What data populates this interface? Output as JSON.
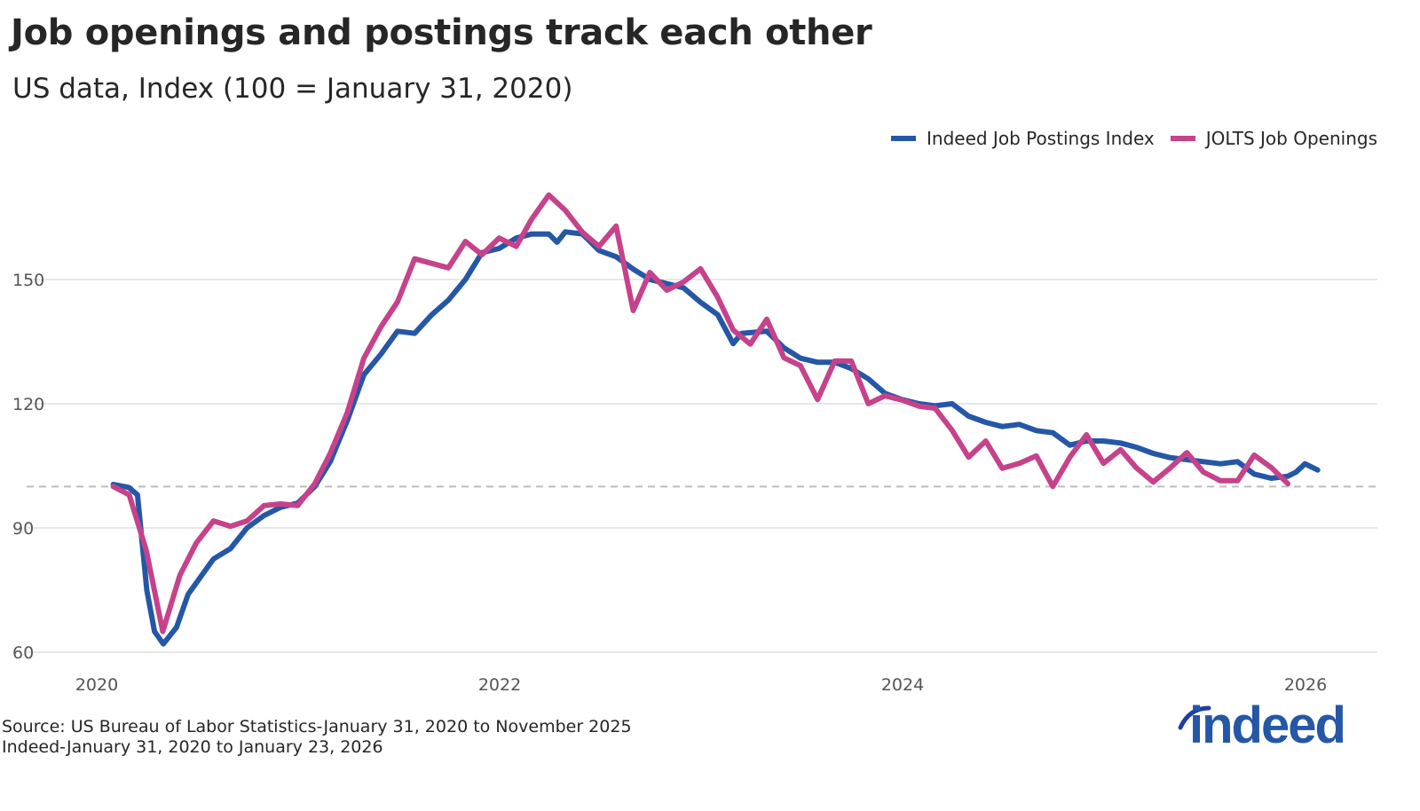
{
  "chart_data": {
    "type": "line",
    "title": "Job openings and postings track each other",
    "subtitle": "US data, Index (100 = January 31, 2020)",
    "xlabel": "",
    "ylabel": "",
    "x_ticks": [
      "2020",
      "2022",
      "2024",
      "2026"
    ],
    "y_ticks": [
      "60",
      "90",
      "120",
      "150"
    ],
    "ylim": [
      60,
      172
    ],
    "xlim": [
      "2019-12-01",
      "2026-07-01"
    ],
    "reference_line": 100,
    "grid": "horizontal",
    "legend_position": "top-right",
    "series": [
      {
        "name": "Indeed Job Postings Index",
        "color": "#2557a7",
        "points": [
          [
            "2020-01-31",
            100.5
          ],
          [
            "2020-02-28",
            99.8
          ],
          [
            "2020-03-15",
            98
          ],
          [
            "2020-04-01",
            75
          ],
          [
            "2020-04-15",
            65
          ],
          [
            "2020-05-01",
            62
          ],
          [
            "2020-05-25",
            66
          ],
          [
            "2020-06-15",
            74
          ],
          [
            "2020-07-31",
            82.5
          ],
          [
            "2020-08-31",
            85
          ],
          [
            "2020-09-30",
            90
          ],
          [
            "2020-10-31",
            93
          ],
          [
            "2020-11-30",
            95
          ],
          [
            "2020-12-31",
            96
          ],
          [
            "2021-01-31",
            100
          ],
          [
            "2021-02-28",
            106
          ],
          [
            "2021-03-31",
            116
          ],
          [
            "2021-04-30",
            127
          ],
          [
            "2021-05-31",
            132
          ],
          [
            "2021-06-30",
            137.5
          ],
          [
            "2021-07-31",
            137
          ],
          [
            "2021-08-31",
            141.5
          ],
          [
            "2021-09-30",
            145
          ],
          [
            "2021-10-31",
            150
          ],
          [
            "2021-11-30",
            156.5
          ],
          [
            "2021-12-31",
            157.5
          ],
          [
            "2022-01-31",
            160
          ],
          [
            "2022-02-28",
            161
          ],
          [
            "2022-03-31",
            161
          ],
          [
            "2022-04-15",
            159
          ],
          [
            "2022-04-30",
            161.5
          ],
          [
            "2022-05-31",
            161
          ],
          [
            "2022-06-30",
            157
          ],
          [
            "2022-07-31",
            155.5
          ],
          [
            "2022-08-31",
            152.5
          ],
          [
            "2022-09-30",
            150
          ],
          [
            "2022-10-31",
            149
          ],
          [
            "2022-11-30",
            148
          ],
          [
            "2022-12-31",
            144.5
          ],
          [
            "2023-01-31",
            141.5
          ],
          [
            "2023-02-28",
            134.5
          ],
          [
            "2023-03-15",
            137
          ],
          [
            "2023-04-30",
            137.5
          ],
          [
            "2023-05-31",
            133.5
          ],
          [
            "2023-06-30",
            131
          ],
          [
            "2023-07-31",
            130
          ],
          [
            "2023-08-31",
            130
          ],
          [
            "2023-09-30",
            128.5
          ],
          [
            "2023-10-31",
            126
          ],
          [
            "2023-11-30",
            122.5
          ],
          [
            "2023-12-31",
            121
          ],
          [
            "2024-01-31",
            120
          ],
          [
            "2024-02-29",
            119.5
          ],
          [
            "2024-03-31",
            120
          ],
          [
            "2024-04-30",
            117
          ],
          [
            "2024-05-31",
            115.5
          ],
          [
            "2024-06-30",
            114.5
          ],
          [
            "2024-07-31",
            115
          ],
          [
            "2024-08-31",
            113.5
          ],
          [
            "2024-09-30",
            113
          ],
          [
            "2024-10-31",
            110
          ],
          [
            "2024-11-30",
            111
          ],
          [
            "2024-12-31",
            111
          ],
          [
            "2025-01-31",
            110.5
          ],
          [
            "2025-02-28",
            109.5
          ],
          [
            "2025-03-31",
            108
          ],
          [
            "2025-04-30",
            107
          ],
          [
            "2025-05-31",
            106.5
          ],
          [
            "2025-06-30",
            106
          ],
          [
            "2025-07-31",
            105.5
          ],
          [
            "2025-08-31",
            106
          ],
          [
            "2025-09-30",
            103
          ],
          [
            "2025-10-31",
            102
          ],
          [
            "2025-11-30",
            102.5
          ],
          [
            "2025-12-15",
            103.5
          ],
          [
            "2025-12-31",
            105.5
          ],
          [
            "2026-01-23",
            104
          ]
        ]
      },
      {
        "name": "JOLTS Job Openings",
        "color": "#c6428a",
        "points": [
          [
            "2020-01-31",
            100
          ],
          [
            "2020-02-29",
            98
          ],
          [
            "2020-03-31",
            84.6
          ],
          [
            "2020-04-30",
            65
          ],
          [
            "2020-05-31",
            78.6
          ],
          [
            "2020-06-30",
            86.4
          ],
          [
            "2020-07-31",
            91.7
          ],
          [
            "2020-08-31",
            90.4
          ],
          [
            "2020-09-30",
            91.7
          ],
          [
            "2020-10-31",
            95.4
          ],
          [
            "2020-11-30",
            95.8
          ],
          [
            "2020-12-31",
            95.4
          ],
          [
            "2021-01-31",
            100.7
          ],
          [
            "2021-02-28",
            108
          ],
          [
            "2021-03-31",
            117.9
          ],
          [
            "2021-04-30",
            131
          ],
          [
            "2021-05-31",
            138.6
          ],
          [
            "2021-06-30",
            144.6
          ],
          [
            "2021-07-31",
            155
          ],
          [
            "2021-08-31",
            153.9
          ],
          [
            "2021-09-30",
            152.8
          ],
          [
            "2021-10-31",
            159.2
          ],
          [
            "2021-11-30",
            156
          ],
          [
            "2021-12-31",
            160
          ],
          [
            "2022-01-31",
            158
          ],
          [
            "2022-02-28",
            164.6
          ],
          [
            "2022-03-31",
            170.4
          ],
          [
            "2022-04-30",
            166.7
          ],
          [
            "2022-05-31",
            161.4
          ],
          [
            "2022-06-30",
            158
          ],
          [
            "2022-07-31",
            162.9
          ],
          [
            "2022-08-31",
            142.5
          ],
          [
            "2022-09-30",
            151.7
          ],
          [
            "2022-10-31",
            147.4
          ],
          [
            "2022-11-30",
            149.4
          ],
          [
            "2022-12-31",
            152.6
          ],
          [
            "2023-01-31",
            145.7
          ],
          [
            "2023-02-28",
            137.8
          ],
          [
            "2023-03-31",
            134.4
          ],
          [
            "2023-04-30",
            140.4
          ],
          [
            "2023-05-31",
            131.1
          ],
          [
            "2023-06-30",
            129.2
          ],
          [
            "2023-07-31",
            121
          ],
          [
            "2023-08-31",
            130.3
          ],
          [
            "2023-09-30",
            130.3
          ],
          [
            "2023-10-31",
            120
          ],
          [
            "2023-11-30",
            121.9
          ],
          [
            "2023-12-31",
            120.9
          ],
          [
            "2024-01-31",
            119.4
          ],
          [
            "2024-02-29",
            118.9
          ],
          [
            "2024-03-31",
            113.6
          ],
          [
            "2024-04-30",
            107.1
          ],
          [
            "2024-05-31",
            111
          ],
          [
            "2024-06-30",
            104.4
          ],
          [
            "2024-07-31",
            105.6
          ],
          [
            "2024-08-31",
            107.4
          ],
          [
            "2024-09-30",
            100
          ],
          [
            "2024-10-31",
            107.1
          ],
          [
            "2024-11-30",
            112.5
          ],
          [
            "2024-12-31",
            105.6
          ],
          [
            "2025-01-31",
            108.9
          ],
          [
            "2025-02-28",
            104.6
          ],
          [
            "2025-03-31",
            101.1
          ],
          [
            "2025-04-30",
            104.4
          ],
          [
            "2025-05-31",
            108.2
          ],
          [
            "2025-06-30",
            103.5
          ],
          [
            "2025-07-31",
            101.4
          ],
          [
            "2025-08-31",
            101.4
          ],
          [
            "2025-09-30",
            107.6
          ],
          [
            "2025-10-31",
            104.6
          ],
          [
            "2025-11-30",
            100.7
          ]
        ]
      }
    ]
  },
  "source": {
    "line1": "Source: US Bureau of Labor Statistics-January 31, 2020 to November 2025",
    "line2": "Indeed-January 31, 2020 to January 23, 2026"
  },
  "logo": {
    "text": "indeed",
    "color": "#2557a7"
  }
}
